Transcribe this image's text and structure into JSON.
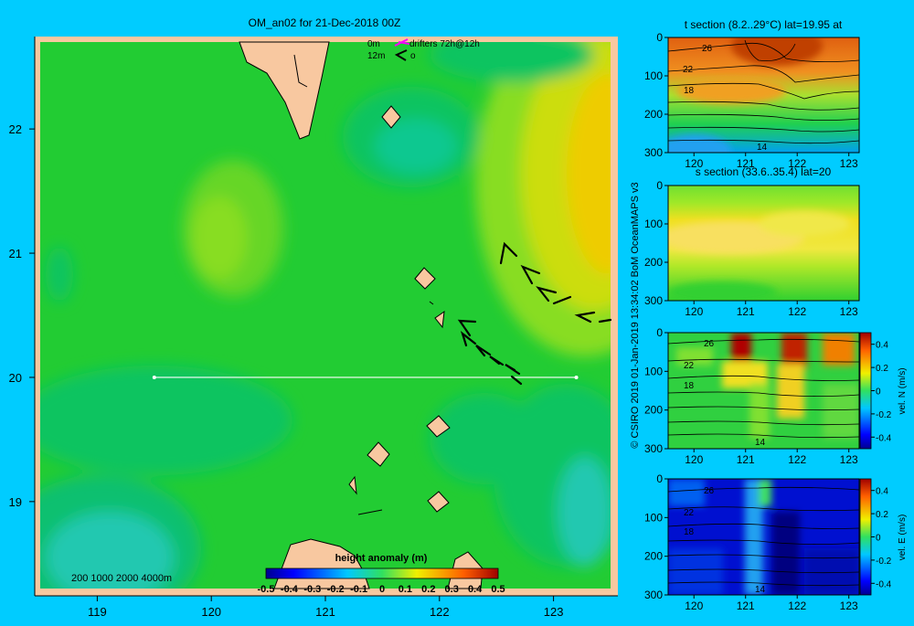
{
  "page": {
    "background": "#00ccff",
    "land_color": "#f8c8a0"
  },
  "main_map": {
    "title": "OM_an02 for 21-Dec-2018 00Z",
    "legend_line1_depth": "0m",
    "legend_line1_text": "drifters 72h@12h",
    "legend_line2_depth": "12m",
    "legend_line2_text": "o",
    "bathy_contours": "200  1000  2000  4000m",
    "xticks": [
      "119",
      "120",
      "121",
      "122",
      "123"
    ],
    "yticks": [
      "22",
      "21",
      "20",
      "19"
    ],
    "xlim": [
      118.5,
      123.5
    ],
    "ylim": [
      18.3,
      22.7
    ],
    "section_line": {
      "lon_start": 119.5,
      "lon_end": 123.2,
      "lat": 20.0
    },
    "colorbar": {
      "title": "height anomaly (m)",
      "ticks": [
        "-0.5",
        "-0.4",
        "-0.3",
        "-0.2",
        "-0.1",
        "0",
        "0.1",
        "0.2",
        "0.3",
        "0.4",
        "0.5"
      ]
    }
  },
  "chart_data": [
    {
      "type": "heatmap",
      "title": "OM_an02 for 21-Dec-2018 00Z",
      "variable": "height anomaly (m)",
      "xlim": [
        118.5,
        123.5
      ],
      "ylim": [
        18.3,
        22.7
      ],
      "vmin": -0.5,
      "vmax": 0.5,
      "field_approx": [
        {
          "region": "basin background",
          "value": 0.1
        },
        {
          "region": "east of 122.5E, 20.5-22.5N",
          "value": 0.3
        },
        {
          "region": "around 119.8E, 21.2N",
          "value": 0.15
        },
        {
          "region": "around 121.6E, 21.8N",
          "value": 0.0
        },
        {
          "region": "southwest corner",
          "value": -0.05
        }
      ]
    },
    {
      "type": "heatmap",
      "title": "t section (8.2..29°C) lat=19.95 at",
      "xticks": [
        "120",
        "121",
        "122",
        "123"
      ],
      "yticks": [
        "0",
        "100",
        "200",
        "300"
      ],
      "xlim": [
        119.5,
        123.2
      ],
      "ylim": [
        300,
        0
      ],
      "contour_labels": [
        "26",
        "22",
        "18",
        "14"
      ]
    },
    {
      "type": "heatmap",
      "title": "s section (33.6..35.4) lat=20",
      "xticks": [
        "120",
        "121",
        "122",
        "123"
      ],
      "yticks": [
        "0",
        "100",
        "200",
        "300"
      ],
      "xlim": [
        119.5,
        123.2
      ],
      "ylim": [
        300,
        0
      ]
    },
    {
      "type": "heatmap",
      "title": "",
      "xticks": [
        "120",
        "121",
        "122",
        "123"
      ],
      "yticks": [
        "0",
        "100",
        "200",
        "300"
      ],
      "xlim": [
        119.5,
        123.2
      ],
      "ylim": [
        300,
        0
      ],
      "contour_labels": [
        "26",
        "22",
        "18",
        "14"
      ],
      "colorbar_label": "vel. N (m/s)",
      "colorbar_ticks": [
        "0.4",
        "0.2",
        "0",
        "-0.2",
        "-0.4"
      ]
    },
    {
      "type": "heatmap",
      "title": "",
      "xticks": [
        "120",
        "121",
        "122",
        "123"
      ],
      "yticks": [
        "0",
        "100",
        "200",
        "300"
      ],
      "xlim": [
        119.5,
        123.2
      ],
      "ylim": [
        300,
        0
      ],
      "contour_labels": [
        "26",
        "22",
        "18",
        "14"
      ],
      "colorbar_label": "vel. E (m/s)",
      "colorbar_ticks": [
        "0.4",
        "0.2",
        "0",
        "-0.2",
        "-0.4"
      ]
    }
  ],
  "sections": {
    "t_title": "t section (8.2..29°C) lat=19.95 at",
    "s_title": "s section (33.6..35.4) lat=20",
    "xticks": [
      "120",
      "121",
      "122",
      "123"
    ],
    "yticks": [
      "0",
      "100",
      "200",
      "300"
    ],
    "contour_26": "26",
    "contour_22": "22",
    "contour_18": "18",
    "contour_14": "14",
    "vn_label": "vel. N (m/s)",
    "ve_label": "vel. E (m/s)",
    "cb_ticks": [
      "0.4",
      "0.2",
      "0",
      "-0.2",
      "-0.4"
    ]
  },
  "credit": "© CSIRO 2019   01-Jan-2019 13:34:02 BoM OceanMAPS v3"
}
